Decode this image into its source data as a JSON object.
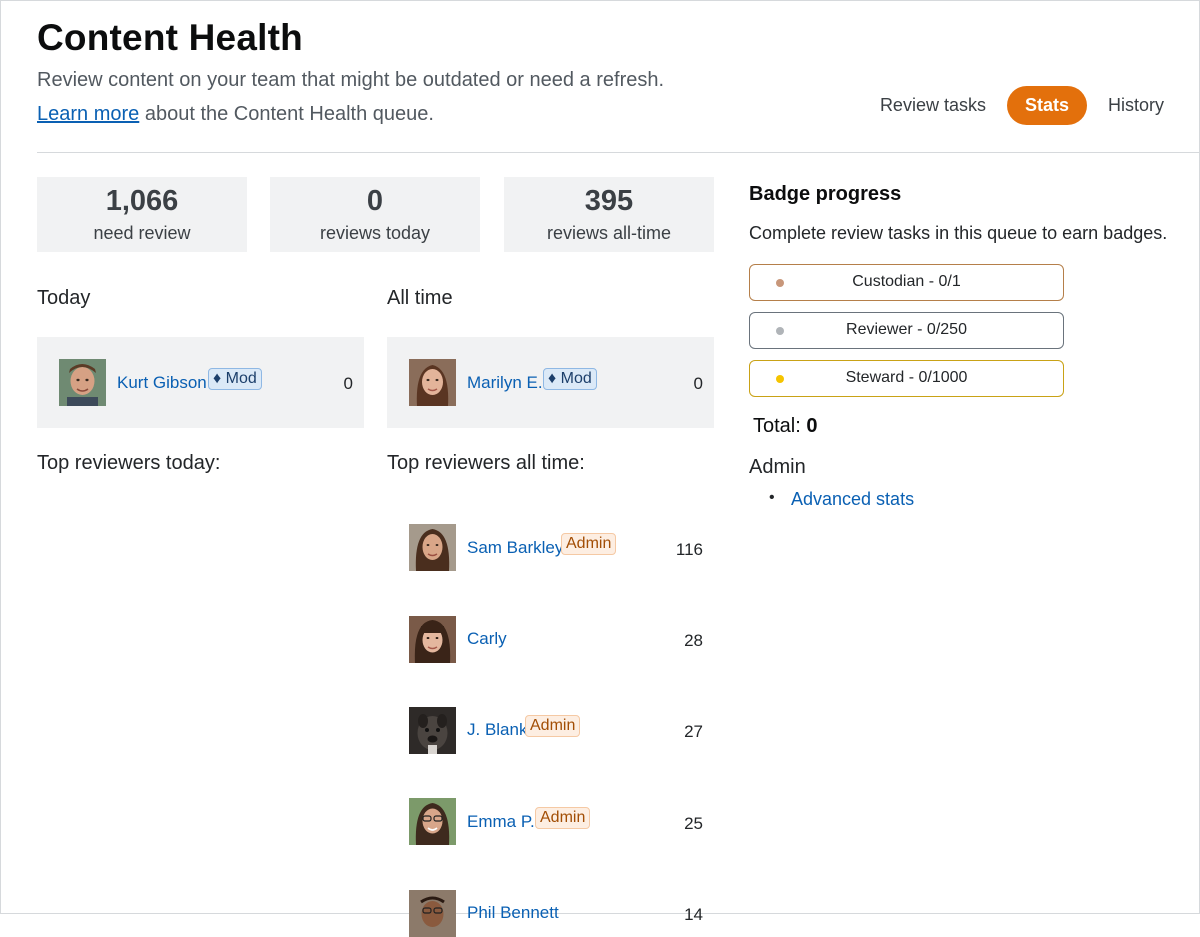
{
  "header": {
    "title": "Content Health",
    "subtitle": "Review content on your team that might be outdated or need a refresh.",
    "learn_link": "Learn more",
    "learn_suffix": " about the Content Health queue."
  },
  "tabs": [
    {
      "label": "Review tasks",
      "active": false
    },
    {
      "label": "Stats",
      "active": true
    },
    {
      "label": "History",
      "active": false
    }
  ],
  "stats": [
    {
      "value": "1,066",
      "label": "need review"
    },
    {
      "value": "0",
      "label": "reviews today"
    },
    {
      "value": "395",
      "label": "reviews all-time"
    }
  ],
  "today": {
    "heading": "Today",
    "user": {
      "name": "Kurt Gibson",
      "badge": "♦ Mod",
      "count": "0"
    },
    "top_heading": "Top reviewers today:"
  },
  "all_time": {
    "heading": "All time",
    "user": {
      "name": "Marilyn E.",
      "badge": "♦ Mod",
      "count": "0"
    },
    "top_heading": "Top reviewers all time:",
    "reviewers": [
      {
        "name": "Sam Barkley",
        "badge": "Admin",
        "count": "116"
      },
      {
        "name": "Carly",
        "badge": "",
        "count": "28"
      },
      {
        "name": "J. Blank",
        "badge": "Admin",
        "count": "27"
      },
      {
        "name": "Emma P.",
        "badge": "Admin",
        "count": "25"
      },
      {
        "name": "Phil Bennett",
        "badge": "",
        "count": "14"
      }
    ]
  },
  "badge_progress": {
    "title": "Badge progress",
    "description": "Complete review tasks in this queue to earn badges.",
    "badges": [
      {
        "label": "Custodian - 0/1",
        "color": "#c8977a",
        "border": "#b57f4a"
      },
      {
        "label": "Reviewer - 0/250",
        "color": "#b0b4b8",
        "border": "#6a737c"
      },
      {
        "label": "Steward - 0/1000",
        "color": "#f5c400",
        "border": "#c9a216"
      }
    ],
    "total_label": "Total:",
    "total_value": "0"
  },
  "admin": {
    "heading": "Admin",
    "links": [
      "Advanced stats"
    ]
  },
  "colors": {
    "accent": "#e3700c",
    "link": "#0a60b3",
    "panel": "#f1f2f3"
  }
}
